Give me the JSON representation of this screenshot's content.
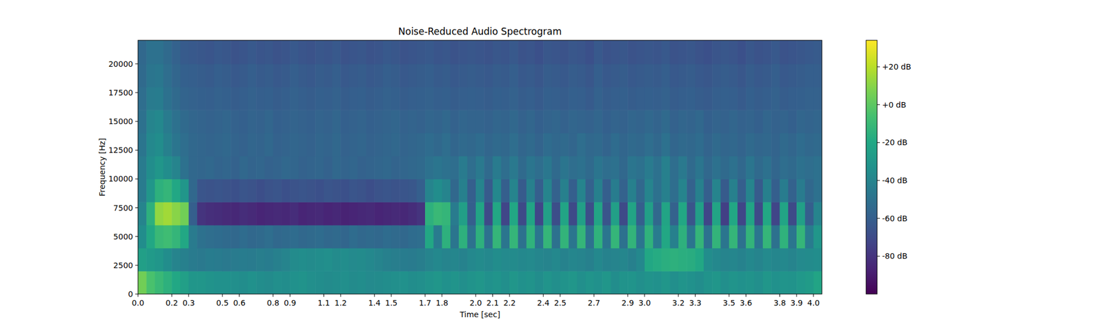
{
  "chart_data": {
    "type": "heatmap",
    "title": "Noise-Reduced Audio Spectrogram",
    "x_label": "Time [sec]",
    "y_label": "Frequency [Hz]",
    "xlim": [
      0,
      4.05
    ],
    "ylim": [
      0,
      22050
    ],
    "xticks": [
      {
        "value": 0,
        "label": "0.0"
      },
      0.2,
      0.3,
      0.5,
      0.6,
      0.8,
      0.9,
      1.1,
      1.2,
      1.4,
      1.5,
      1.7,
      1.8,
      {
        "value": 2,
        "label": "2.0"
      },
      2.1,
      2.2,
      2.4,
      2.5,
      2.7,
      2.9,
      {
        "value": 3,
        "label": "3.0"
      },
      3.2,
      3.3,
      3.5,
      3.6,
      3.8,
      3.9,
      {
        "value": 4,
        "label": "4.0"
      }
    ],
    "yticks": [
      0,
      2500,
      5000,
      7500,
      10000,
      12500,
      15000,
      17500,
      20000
    ],
    "time_bins": [
      0,
      0.05,
      0.1,
      0.15,
      0.2,
      0.25,
      0.3,
      0.35,
      0.4,
      0.45,
      0.5,
      0.55,
      0.6,
      0.65,
      0.7,
      0.75,
      0.8,
      0.85,
      0.9,
      0.95,
      1,
      1.05,
      1.1,
      1.15,
      1.2,
      1.25,
      1.3,
      1.35,
      1.4,
      1.45,
      1.5,
      1.55,
      1.6,
      1.65,
      1.7,
      1.75,
      1.8,
      1.85,
      1.9,
      1.95,
      2,
      2.05,
      2.1,
      2.15,
      2.2,
      2.25,
      2.3,
      2.35,
      2.4,
      2.45,
      2.5,
      2.55,
      2.6,
      2.65,
      2.7,
      2.75,
      2.8,
      2.85,
      2.9,
      2.95,
      3,
      3.05,
      3.1,
      3.15,
      3.2,
      3.25,
      3.3,
      3.35,
      3.4,
      3.45,
      3.5,
      3.55,
      3.6,
      3.65,
      3.7,
      3.75,
      3.8,
      3.85,
      3.9,
      3.95,
      4,
      4.05
    ],
    "frequency_bins": [
      0,
      2000,
      4000,
      6000,
      8000,
      10000,
      12000,
      14000,
      16000,
      18000,
      20000,
      22050
    ],
    "cells": [
      [
        5,
        -5,
        -10,
        -15,
        -20,
        -25,
        -30,
        -30,
        -32,
        -33,
        -33,
        -34,
        -35,
        -33,
        -35,
        -36,
        -34,
        -35,
        -33,
        -32,
        -34,
        -35,
        -36,
        -35,
        -34,
        -36,
        -35,
        -37,
        -36,
        -35,
        -34,
        -33,
        -35,
        -34,
        -32,
        -30,
        -33,
        -31,
        -34,
        -32,
        -30,
        -33,
        -31,
        -34,
        -30,
        -33,
        -32,
        -35,
        -31,
        -34,
        -32,
        -30,
        -34,
        -31,
        -33,
        -30,
        -35,
        -32,
        -31,
        -34,
        -32,
        -33,
        -30,
        -34,
        -31,
        -33,
        -35,
        -32,
        -30,
        -34,
        -31,
        -33,
        -32,
        -34,
        -30,
        -33,
        -31,
        -32,
        -29,
        -27,
        -22
      ],
      [
        -25,
        -28,
        -30,
        -35,
        -40,
        -42,
        -45,
        -46,
        -44,
        -45,
        -46,
        -45,
        -44,
        -45,
        -43,
        -44,
        -42,
        -40,
        -36,
        -35,
        -36,
        -35,
        -34,
        -36,
        -35,
        -37,
        -36,
        -38,
        -40,
        -42,
        -43,
        -44,
        -45,
        -43,
        -40,
        -38,
        -40,
        -39,
        -41,
        -38,
        -36,
        -38,
        -35,
        -37,
        -36,
        -38,
        -37,
        -39,
        -40,
        -38,
        -41,
        -39,
        -40,
        -42,
        -38,
        -41,
        -40,
        -39,
        -42,
        -38,
        -20,
        -18,
        -16,
        -15,
        -16,
        -17,
        -20,
        -35,
        -38,
        -40,
        -39,
        -41,
        -38,
        -40,
        -37,
        -39,
        -38,
        -40,
        -37,
        -36,
        -35
      ],
      [
        -35,
        -20,
        -10,
        -8,
        -12,
        -20,
        -45,
        -50,
        -52,
        -53,
        -54,
        -55,
        -53,
        -55,
        -54,
        -52,
        -55,
        -54,
        -53,
        -55,
        -54,
        -53,
        -55,
        -54,
        -56,
        -53,
        -55,
        -54,
        -55,
        -53,
        -54,
        -55,
        -53,
        -52,
        -20,
        -45,
        -15,
        -48,
        -15,
        -50,
        -15,
        -50,
        -12,
        -48,
        -12,
        -50,
        -14,
        -48,
        -12,
        -50,
        -13,
        -48,
        -12,
        -50,
        -14,
        -48,
        -12,
        -50,
        -13,
        -48,
        -14,
        -45,
        -20,
        -42,
        -15,
        -48,
        -12,
        -50,
        -13,
        -48,
        -12,
        -50,
        -13,
        -48,
        -12,
        -50,
        -14,
        -48,
        -12,
        -45,
        -30
      ],
      [
        -40,
        -15,
        12,
        15,
        10,
        5,
        -60,
        -80,
        -82,
        -83,
        -84,
        -85,
        -83,
        -84,
        -86,
        -85,
        -84,
        -85,
        -83,
        -86,
        -85,
        -84,
        -86,
        -85,
        -87,
        -86,
        -85,
        -84,
        -86,
        -85,
        -84,
        -85,
        -83,
        -80,
        -15,
        -10,
        -12,
        -45,
        -25,
        -60,
        -22,
        -70,
        -20,
        -72,
        -20,
        -70,
        -22,
        -72,
        -25,
        -68,
        -22,
        -70,
        -25,
        -68,
        -22,
        -65,
        -25,
        -70,
        -22,
        -60,
        -25,
        -55,
        -22,
        -58,
        -20,
        -65,
        -25,
        -72,
        -22,
        -75,
        -20,
        -72,
        -22,
        -70,
        -20,
        -72,
        -22,
        -70,
        -25,
        -60,
        -40
      ],
      [
        -45,
        -30,
        -15,
        -12,
        -20,
        -30,
        -55,
        -65,
        -66,
        -65,
        -66,
        -67,
        -65,
        -66,
        -68,
        -66,
        -65,
        -67,
        -66,
        -65,
        -66,
        -67,
        -65,
        -66,
        -67,
        -65,
        -66,
        -68,
        -66,
        -65,
        -66,
        -65,
        -64,
        -60,
        -40,
        -35,
        -40,
        -55,
        -42,
        -60,
        -40,
        -62,
        -38,
        -60,
        -40,
        -62,
        -42,
        -60,
        -40,
        -58,
        -42,
        -60,
        -40,
        -58,
        -42,
        -60,
        -44,
        -58,
        -42,
        -55,
        -40,
        -50,
        -42,
        -52,
        -40,
        -58,
        -42,
        -60,
        -40,
        -62,
        -42,
        -60,
        -40,
        -62,
        -42,
        -60,
        -44,
        -58,
        -45,
        -55,
        -50
      ],
      [
        -45,
        -35,
        -30,
        -35,
        -40,
        -50,
        -55,
        -56,
        -55,
        -57,
        -56,
        -58,
        -55,
        -57,
        -56,
        -58,
        -57,
        -55,
        -56,
        -58,
        -57,
        -56,
        -58,
        -55,
        -57,
        -56,
        -58,
        -57,
        -56,
        -55,
        -57,
        -56,
        -55,
        -54,
        -50,
        -48,
        -50,
        -52,
        -45,
        -52,
        -46,
        -54,
        -45,
        -52,
        -46,
        -54,
        -48,
        -52,
        -47,
        -54,
        -48,
        -52,
        -50,
        -54,
        -48,
        -52,
        -50,
        -55,
        -48,
        -50,
        -45,
        -50,
        -42,
        -52,
        -46,
        -54,
        -48,
        -55,
        -50,
        -54,
        -50,
        -55,
        -48,
        -54,
        -50,
        -56,
        -52,
        -54,
        -50,
        -52,
        -50
      ],
      [
        -48,
        -38,
        -35,
        -42,
        -48,
        -52,
        -55,
        -56,
        -57,
        -56,
        -55,
        -57,
        -58,
        -56,
        -57,
        -55,
        -58,
        -57,
        -56,
        -57,
        -58,
        -56,
        -57,
        -55,
        -58,
        -57,
        -56,
        -58,
        -57,
        -56,
        -55,
        -57,
        -56,
        -55,
        -53,
        -55,
        -52,
        -56,
        -54,
        -55,
        -53,
        -56,
        -54,
        -55,
        -52,
        -56,
        -54,
        -57,
        -53,
        -55,
        -54,
        -56,
        -52,
        -55,
        -54,
        -57,
        -53,
        -56,
        -54,
        -55,
        -52,
        -55,
        -50,
        -56,
        -54,
        -55,
        -53,
        -57,
        -54,
        -56,
        -55,
        -57,
        -54,
        -56,
        -55,
        -57,
        -54,
        -56,
        -53,
        -55,
        -54
      ],
      [
        -50,
        -40,
        -38,
        -45,
        -50,
        -54,
        -56,
        -57,
        -58,
        -57,
        -56,
        -58,
        -59,
        -57,
        -58,
        -56,
        -59,
        -58,
        -57,
        -58,
        -59,
        -57,
        -58,
        -56,
        -59,
        -58,
        -57,
        -59,
        -58,
        -57,
        -56,
        -58,
        -57,
        -58,
        -56,
        -57,
        -55,
        -58,
        -56,
        -57,
        -57,
        -58,
        -56,
        -57,
        -55,
        -58,
        -56,
        -59,
        -57,
        -56,
        -58,
        -56,
        -57,
        -58,
        -56,
        -59,
        -57,
        -58,
        -56,
        -57,
        -55,
        -57,
        -54,
        -58,
        -56,
        -57,
        -55,
        -59,
        -57,
        -58,
        -56,
        -58,
        -57,
        -59,
        -56,
        -58,
        -57,
        -59,
        -56,
        -57,
        -56
      ],
      [
        -52,
        -45,
        -44,
        -50,
        -54,
        -57,
        -58,
        -59,
        -60,
        -58,
        -59,
        -61,
        -60,
        -58,
        -60,
        -59,
        -61,
        -60,
        -58,
        -60,
        -61,
        -59,
        -60,
        -58,
        -61,
        -60,
        -59,
        -61,
        -60,
        -58,
        -59,
        -61,
        -60,
        -59,
        -58,
        -60,
        -59,
        -61,
        -60,
        -59,
        -60,
        -61,
        -59,
        -60,
        -58,
        -61,
        -60,
        -62,
        -59,
        -60,
        -61,
        -59,
        -60,
        -62,
        -58,
        -61,
        -60,
        -59,
        -61,
        -60,
        -59,
        -60,
        -58,
        -61,
        -60,
        -59,
        -61,
        -62,
        -60,
        -59,
        -60,
        -62,
        -59,
        -61,
        -60,
        -58,
        -61,
        -60,
        -59,
        -58,
        -58
      ],
      [
        -54,
        -48,
        -47,
        -52,
        -56,
        -59,
        -60,
        -61,
        -62,
        -60,
        -61,
        -63,
        -62,
        -60,
        -62,
        -61,
        -63,
        -62,
        -60,
        -62,
        -63,
        -61,
        -62,
        -60,
        -63,
        -62,
        -61,
        -63,
        -62,
        -60,
        -61,
        -63,
        -62,
        -61,
        -60,
        -62,
        -61,
        -63,
        -62,
        -61,
        -62,
        -63,
        -61,
        -62,
        -60,
        -63,
        -62,
        -64,
        -61,
        -62,
        -63,
        -61,
        -62,
        -64,
        -60,
        -63,
        -62,
        -61,
        -63,
        -62,
        -61,
        -62,
        -60,
        -63,
        -62,
        -61,
        -63,
        -64,
        -62,
        -61,
        -62,
        -64,
        -61,
        -63,
        -62,
        -60,
        -63,
        -62,
        -61,
        -60,
        -60
      ],
      [
        -55,
        -50,
        -50,
        -54,
        -58,
        -62,
        -63,
        -64,
        -65,
        -63,
        -64,
        -66,
        -65,
        -63,
        -65,
        -64,
        -66,
        -65,
        -63,
        -65,
        -66,
        -64,
        -65,
        -63,
        -66,
        -65,
        -64,
        -66,
        -65,
        -63,
        -64,
        -66,
        -65,
        -64,
        -63,
        -65,
        -64,
        -66,
        -65,
        -64,
        -65,
        -66,
        -64,
        -65,
        -63,
        -66,
        -65,
        -67,
        -64,
        -65,
        -66,
        -64,
        -65,
        -67,
        -63,
        -66,
        -65,
        -64,
        -66,
        -65,
        -64,
        -65,
        -63,
        -66,
        -65,
        -64,
        -66,
        -67,
        -65,
        -64,
        -65,
        -67,
        -64,
        -66,
        -65,
        -63,
        -66,
        -65,
        -64,
        -63,
        -62
      ]
    ],
    "colorbar": {
      "range": [
        -100,
        34
      ],
      "ticks": [
        {
          "value": 20,
          "label": "+20 dB"
        },
        {
          "value": 0,
          "label": "+0 dB"
        },
        {
          "value": -20,
          "label": "-20 dB"
        },
        {
          "value": -40,
          "label": "-40 dB"
        },
        {
          "value": -60,
          "label": "-60 dB"
        },
        {
          "value": -80,
          "label": "-80 dB"
        }
      ]
    }
  }
}
